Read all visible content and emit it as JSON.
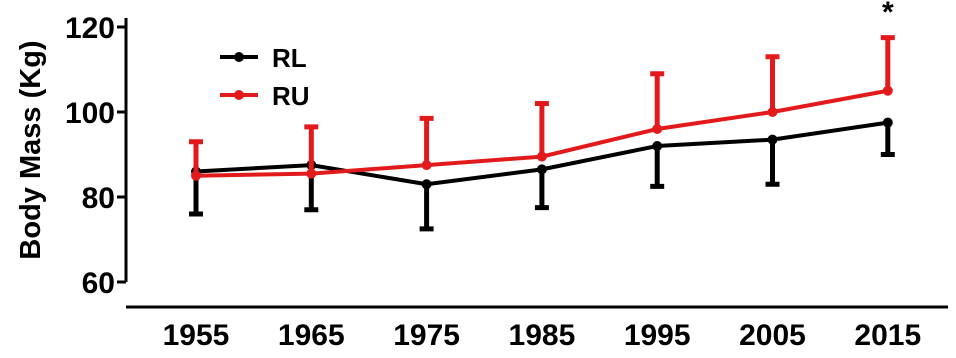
{
  "chart_data": {
    "type": "line",
    "title": "",
    "xlabel": "",
    "ylabel": "Body Mass (Kg)",
    "categories": [
      "1955",
      "1965",
      "1975",
      "1985",
      "1995",
      "2005",
      "2015"
    ],
    "ylim": [
      60,
      120
    ],
    "yticks": [
      60,
      80,
      100,
      120
    ],
    "error_bars": "upper for RU, lower for RL",
    "grid": false,
    "legend": "top-left",
    "series": [
      {
        "name": "RL",
        "color": "#000000",
        "values": [
          86,
          87.5,
          83,
          86.5,
          92,
          93.5,
          97.5
        ],
        "error": [
          10,
          10.5,
          10.5,
          9,
          9.5,
          10.5,
          7.5
        ]
      },
      {
        "name": "RU",
        "color": "#e31a1c",
        "values": [
          85,
          85.5,
          87.5,
          89.5,
          96,
          100,
          105
        ],
        "error": [
          8,
          11,
          11,
          12.5,
          13,
          13,
          12.5
        ]
      }
    ],
    "annotations": [
      {
        "text": "*",
        "category": "2015"
      }
    ]
  }
}
